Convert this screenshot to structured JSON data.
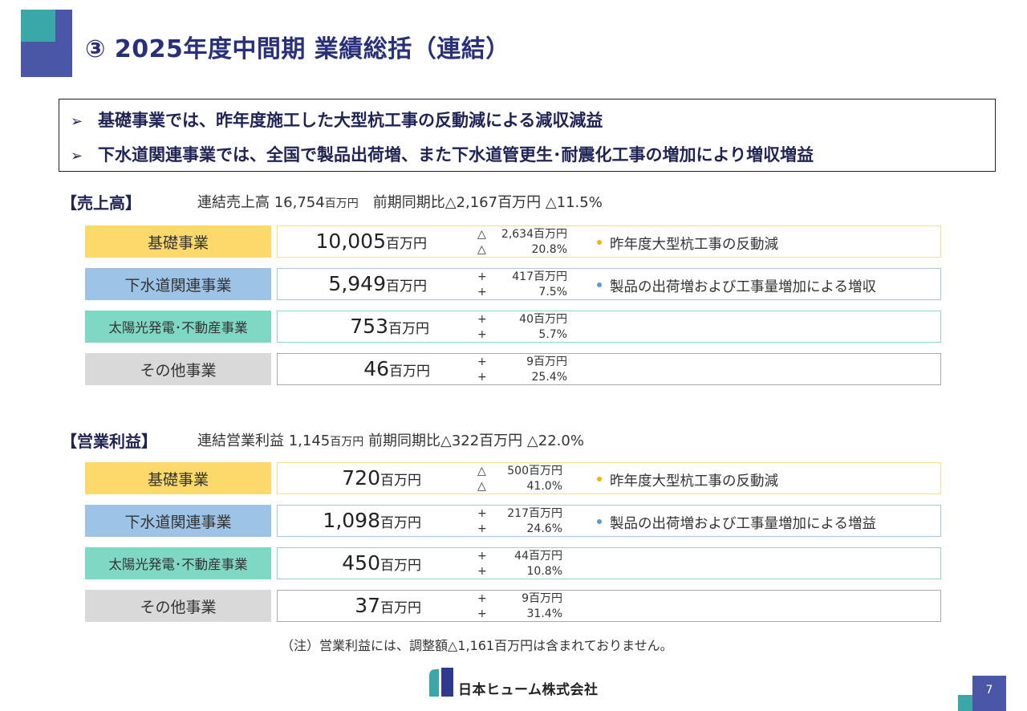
{
  "title": "③ 2025年度中間期 業績総括（連結）",
  "summary": [
    "基礎事業では、昨年度施工した大型杭工事の反動減による減収減益",
    "下水道関連事業では、全国で製品出荷増、また下水道管更生･耐震化工事の増加により増収増益"
  ],
  "summary_arrow": "➢",
  "colors": {
    "kiso": "#fdd96c",
    "gesui": "#9dc3e6",
    "taiyo": "#7fd8c4",
    "other": "#d9d9d9",
    "kiso_border": "#f7e08a",
    "gesui_border": "#a6c8e0",
    "taiyo_border": "#8fd8c8",
    "other_border": "#aaaaaa",
    "dot_yellow": "#f2b705",
    "dot_blue": "#5b9bd5"
  },
  "sales": {
    "heading": "【売上高】",
    "summary_prefix": "連結売上高 16,754",
    "summary_unit": "百万円",
    "summary_suffix": "　前期同期比△2,167百万円 △11.5%",
    "rows": [
      {
        "label": "基礎事業",
        "value": "10,005",
        "unit": "百万円",
        "sign1": "△",
        "chg1": "2,634百万円",
        "sign2": "△",
        "chg2": "20.8%",
        "note": "昨年度大型杭工事の反動減"
      },
      {
        "label": "下水道関連事業",
        "value": "5,949",
        "unit": "百万円",
        "sign1": "+",
        "chg1": "417百万円",
        "sign2": "+",
        "chg2": "7.5%",
        "note": "製品の出荷増および工事量増加による増収"
      },
      {
        "label": "太陽光発電･不動産事業",
        "value": "753",
        "unit": "百万円",
        "sign1": "+",
        "chg1": "40百万円",
        "sign2": "+",
        "chg2": "5.7%",
        "note": ""
      },
      {
        "label": "その他事業",
        "value": "46",
        "unit": "百万円",
        "sign1": "+",
        "chg1": "9百万円",
        "sign2": "+",
        "chg2": "25.4%",
        "note": ""
      }
    ]
  },
  "profit": {
    "heading": "【営業利益】",
    "summary_prefix": "連結営業利益 1,145",
    "summary_unit": "百万円",
    "summary_suffix": "  前期同期比△322百万円 △22.0%",
    "rows": [
      {
        "label": "基礎事業",
        "value": "720",
        "unit": "百万円",
        "sign1": "△",
        "chg1": "500百万円",
        "sign2": "△",
        "chg2": "41.0%",
        "note": "昨年度大型杭工事の反動減"
      },
      {
        "label": "下水道関連事業",
        "value": "1,098",
        "unit": "百万円",
        "sign1": "+",
        "chg1": "217百万円",
        "sign2": "+",
        "chg2": "24.6%",
        "note": "製品の出荷増および工事量増加による増益"
      },
      {
        "label": "太陽光発電･不動産事業",
        "value": "450",
        "unit": "百万円",
        "sign1": "+",
        "chg1": "44百万円",
        "sign2": "+",
        "chg2": "10.8%",
        "note": ""
      },
      {
        "label": "その他事業",
        "value": "37",
        "unit": "百万円",
        "sign1": "+",
        "chg1": "9百万円",
        "sign2": "+",
        "chg2": "31.4%",
        "note": ""
      }
    ]
  },
  "footnote": "（注）営業利益には、調整額△1,161百万円は含まれておりません。",
  "company": "日本ヒューム株式会社",
  "page_number": "7"
}
